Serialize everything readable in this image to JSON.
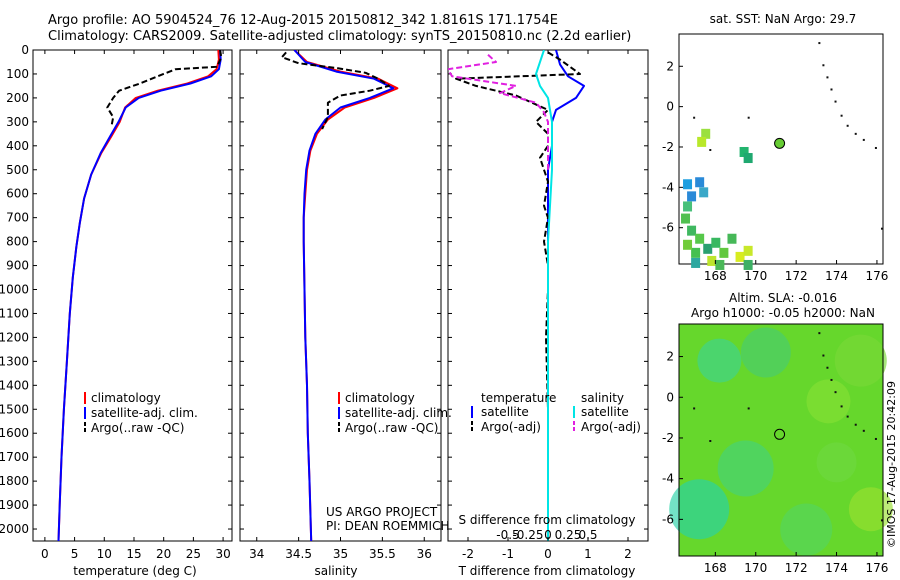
{
  "header": {
    "line1": "Argo profile: AO 5904524_76 12-Aug-2015 20150812_342 1.8161S 171.1754E",
    "line2": "Climatology: CARS2009. Satellite-adjusted climatology: synTS_20150810.nc (2.2d earlier)"
  },
  "colors": {
    "climatology": "#ff0000",
    "satellite": "#0000ff",
    "argo": "#000000",
    "s_sat": "#00e5e5",
    "s_argo": "#e020e0",
    "ocean": "#5fcf22",
    "land": "#111111"
  },
  "depth_axis": {
    "ticks": [
      0,
      100,
      200,
      300,
      400,
      500,
      600,
      700,
      800,
      900,
      1000,
      1100,
      1200,
      1300,
      1400,
      1500,
      1600,
      1700,
      1800,
      1900,
      2000
    ],
    "range": [
      0,
      2050
    ],
    "reversed": true
  },
  "chart_data": [
    {
      "id": "temperature",
      "type": "line",
      "xlabel": "temperature (deg C)",
      "xlim": [
        -2,
        31.5
      ],
      "xticks": [
        0,
        5,
        10,
        15,
        20,
        25,
        30
      ],
      "legend": [
        "climatology",
        "satellite-adj. clim.",
        "Argo(..raw -QC)"
      ],
      "series": [
        {
          "name": "climatology",
          "color": "#ff0000",
          "dash": "",
          "points": [
            [
              29.2,
              0
            ],
            [
              29.3,
              40
            ],
            [
              28.9,
              80
            ],
            [
              27.5,
              110
            ],
            [
              24,
              140
            ],
            [
              19,
              170
            ],
            [
              15.3,
              200
            ],
            [
              13.5,
              240
            ],
            [
              12.6,
              300
            ],
            [
              11.2,
              360
            ],
            [
              9.5,
              430
            ],
            [
              7.8,
              520
            ],
            [
              6.6,
              620
            ],
            [
              5.9,
              720
            ],
            [
              5.3,
              820
            ],
            [
              4.7,
              950
            ],
            [
              4.2,
              1100
            ],
            [
              3.7,
              1300
            ],
            [
              3.2,
              1500
            ],
            [
              2.8,
              1700
            ],
            [
              2.5,
              1900
            ],
            [
              2.3,
              2050
            ]
          ]
        },
        {
          "name": "satellite-adj. clim.",
          "color": "#0000ff",
          "dash": "",
          "points": [
            [
              29.5,
              0
            ],
            [
              29.6,
              40
            ],
            [
              29.3,
              80
            ],
            [
              28,
              110
            ],
            [
              24.5,
              140
            ],
            [
              19.5,
              170
            ],
            [
              15.8,
              200
            ],
            [
              13.6,
              240
            ],
            [
              12.4,
              300
            ],
            [
              11,
              360
            ],
            [
              9.4,
              430
            ],
            [
              7.8,
              520
            ],
            [
              6.6,
              620
            ],
            [
              5.9,
              720
            ],
            [
              5.3,
              820
            ],
            [
              4.7,
              950
            ],
            [
              4.2,
              1100
            ],
            [
              3.7,
              1300
            ],
            [
              3.2,
              1500
            ],
            [
              2.8,
              1700
            ],
            [
              2.5,
              1900
            ],
            [
              2.3,
              2050
            ]
          ]
        },
        {
          "name": "Argo(..raw -QC)",
          "color": "#000000",
          "dash": "6,3",
          "points": [
            [
              29.5,
              0
            ],
            [
              29.7,
              30
            ],
            [
              29,
              70
            ],
            [
              22,
              80
            ],
            [
              19,
              110
            ],
            [
              16,
              140
            ],
            [
              12.5,
              170
            ],
            [
              11.5,
              200
            ],
            [
              10.5,
              240
            ],
            [
              11.5,
              280
            ],
            [
              11.2,
              320
            ]
          ]
        }
      ]
    },
    {
      "id": "salinity",
      "type": "line",
      "xlabel": "salinity",
      "xlim": [
        33.8,
        36.2
      ],
      "xticks": [
        34,
        34.5,
        35,
        35.5,
        36
      ],
      "legend": [
        "climatology",
        "satellite-adj. clim.",
        "Argo(..raw -QC)"
      ],
      "series": [
        {
          "name": "climatology",
          "color": "#ff0000",
          "dash": "",
          "points": [
            [
              34.45,
              0
            ],
            [
              34.6,
              50
            ],
            [
              35,
              90
            ],
            [
              35.45,
              120
            ],
            [
              35.68,
              160
            ],
            [
              35.4,
              200
            ],
            [
              35.05,
              240
            ],
            [
              34.85,
              290
            ],
            [
              34.72,
              350
            ],
            [
              34.64,
              420
            ],
            [
              34.6,
              500
            ],
            [
              34.58,
              600
            ],
            [
              34.56,
              700
            ],
            [
              34.56,
              800
            ],
            [
              34.57,
              1000
            ],
            [
              34.58,
              1200
            ],
            [
              34.6,
              1400
            ],
            [
              34.61,
              1600
            ],
            [
              34.63,
              1800
            ],
            [
              34.65,
              2050
            ]
          ]
        },
        {
          "name": "satellite-adj. clim.",
          "color": "#0000ff",
          "dash": "",
          "points": [
            [
              34.45,
              0
            ],
            [
              34.58,
              50
            ],
            [
              34.95,
              90
            ],
            [
              35.4,
              120
            ],
            [
              35.63,
              160
            ],
            [
              35.35,
              200
            ],
            [
              35.0,
              240
            ],
            [
              34.82,
              290
            ],
            [
              34.7,
              350
            ],
            [
              34.63,
              420
            ],
            [
              34.59,
              500
            ],
            [
              34.57,
              600
            ],
            [
              34.56,
              700
            ],
            [
              34.56,
              800
            ],
            [
              34.57,
              1000
            ],
            [
              34.58,
              1200
            ],
            [
              34.6,
              1400
            ],
            [
              34.61,
              1600
            ],
            [
              34.63,
              1800
            ],
            [
              34.65,
              2050
            ]
          ]
        },
        {
          "name": "Argo(..raw -QC)",
          "color": "#000000",
          "dash": "6,3",
          "points": [
            [
              34.35,
              10
            ],
            [
              34.3,
              30
            ],
            [
              34.5,
              55
            ],
            [
              34.95,
              75
            ],
            [
              35.3,
              95
            ],
            [
              35.45,
              120
            ],
            [
              35.58,
              150
            ],
            [
              35.35,
              170
            ],
            [
              35.0,
              190
            ],
            [
              34.85,
              220
            ],
            [
              34.85,
              280
            ],
            [
              34.78,
              330
            ]
          ]
        }
      ]
    },
    {
      "id": "difference",
      "type": "line",
      "xlabel": "T difference from climatology",
      "xlabel_top": "S difference from climatology",
      "xlim": [
        -2.5,
        2.5
      ],
      "xticks": [
        -2,
        -1,
        0,
        1,
        2
      ],
      "xticks_top": [
        "-0.5",
        "-0.25",
        "0",
        "0.25",
        "0.5"
      ],
      "legend_t_title": "temperature",
      "legend_s_title": "salinity",
      "legend_t": [
        "satellite",
        "Argo(-adj)"
      ],
      "legend_s": [
        "satellite",
        "Argo(-adj)"
      ],
      "series": [
        {
          "name": "temperature satellite",
          "color": "#0000ff",
          "dash": "",
          "points": [
            [
              0.2,
              0
            ],
            [
              0.3,
              60
            ],
            [
              0.5,
              110
            ],
            [
              0.9,
              150
            ],
            [
              0.7,
              200
            ],
            [
              0.2,
              250
            ],
            [
              0.1,
              300
            ],
            [
              0.1,
              400
            ],
            [
              0,
              500
            ],
            [
              0,
              600
            ],
            [
              0,
              800
            ],
            [
              0,
              1000
            ],
            [
              0,
              2050
            ]
          ]
        },
        {
          "name": "temperature Argo(-adj)",
          "color": "#000000",
          "dash": "6,3",
          "points": [
            [
              0,
              10
            ],
            [
              0.3,
              40
            ],
            [
              0.8,
              100
            ],
            [
              -2.3,
              120
            ],
            [
              -1.8,
              150
            ],
            [
              -0.8,
              190
            ],
            [
              0,
              250
            ],
            [
              -0.3,
              300
            ],
            [
              0,
              350
            ],
            [
              0,
              400
            ],
            [
              -0.2,
              450
            ],
            [
              0,
              550
            ],
            [
              -0.1,
              650
            ],
            [
              0,
              700
            ],
            [
              -0.1,
              800
            ],
            [
              0,
              900
            ],
            [
              0,
              1000
            ],
            [
              -0.05,
              1200
            ],
            [
              0,
              1500
            ],
            [
              0,
              1800
            ],
            [
              0,
              2050
            ]
          ]
        },
        {
          "name": "salinity satellite",
          "color": "#00e5e5",
          "dash": "",
          "points": [
            [
              -0.1,
              0
            ],
            [
              -0.2,
              50
            ],
            [
              -0.3,
              100
            ],
            [
              -0.2,
              150
            ],
            [
              0,
              200
            ],
            [
              0.1,
              300
            ],
            [
              0.1,
              500
            ],
            [
              0,
              800
            ],
            [
              0,
              2050
            ]
          ]
        },
        {
          "name": "salinity Argo(-adj)",
          "color": "#e020e0",
          "dash": "6,3",
          "points": [
            [
              -1.5,
              20
            ],
            [
              -1.3,
              50
            ],
            [
              -2.5,
              80
            ],
            [
              -2.4,
              110
            ],
            [
              -0.8,
              150
            ],
            [
              -1.2,
              180
            ],
            [
              -0.3,
              220
            ],
            [
              -0.1,
              260
            ],
            [
              0,
              300
            ],
            [
              0,
              400
            ],
            [
              0,
              500
            ]
          ]
        }
      ]
    },
    {
      "id": "sst_map",
      "type": "heatmap",
      "title": "sat. SST: NaN Argo: 29.7",
      "xticks": [
        168,
        170,
        172,
        174,
        176
      ],
      "yticks": [
        2,
        0,
        -2,
        -4,
        -6
      ],
      "xlim": [
        166.2,
        176.3
      ],
      "ylim": [
        -7.8,
        3.6
      ],
      "argo_position": [
        171.18,
        -1.82
      ]
    },
    {
      "id": "sla_map",
      "type": "heatmap",
      "title_line1": "Altim. SLA: -0.016",
      "title_line2": "Argo h1000: -0.05 h2000: NaN",
      "xticks": [
        168,
        170,
        172,
        174,
        176
      ],
      "yticks": [
        2,
        0,
        -2,
        -4,
        -6
      ],
      "xlim": [
        166.2,
        176.3
      ],
      "ylim": [
        -7.8,
        3.6
      ],
      "argo_position": [
        171.18,
        -1.82
      ]
    }
  ],
  "annotations": {
    "project_line1": "US ARGO PROJECT",
    "project_line2": "PI: DEAN ROEMMICH",
    "credit": "©IMOS 17-Aug-2015 20:42:09"
  }
}
